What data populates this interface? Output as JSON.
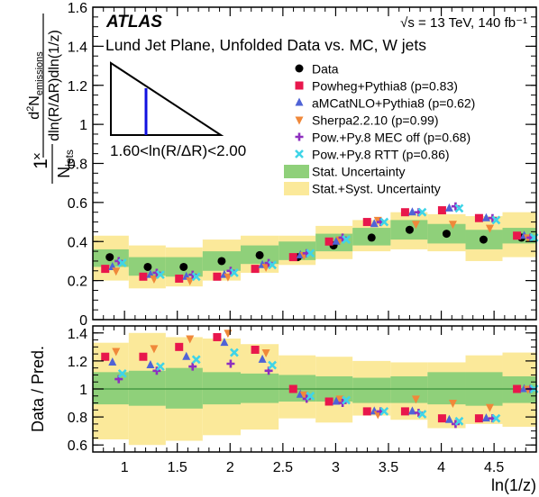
{
  "chart_data": [
    {
      "type": "scatter",
      "experiment": "ATLAS",
      "energy_label": "√s = 13 TeV, 140 fb⁻¹",
      "title": "Lund Jet Plane, Unfolded Data vs. MC, W jets",
      "bin_label": "1.60<ln(R/ΔR)<2.00",
      "xlabel": "ln(1/z)",
      "ylabel": "1/N_jets × d²N_emissions / dln(R/ΔR)dln(1/z)",
      "xlim": [
        0.7,
        4.9
      ],
      "ylim": [
        0,
        1.6
      ],
      "xticks": [
        1,
        1.5,
        2,
        2.5,
        3,
        3.5,
        4,
        4.5
      ],
      "yticks": [
        0,
        0.2,
        0.4,
        0.6,
        0.8,
        1,
        1.2,
        1.4,
        1.6
      ],
      "legend_placement": "top-right",
      "x": [
        0.86,
        1.22,
        1.56,
        1.92,
        2.28,
        2.64,
        2.98,
        3.34,
        3.7,
        4.05,
        4.4,
        4.76
      ],
      "bin_edges": [
        0.7,
        1.04,
        1.39,
        1.74,
        2.1,
        2.46,
        2.81,
        3.16,
        3.52,
        3.87,
        4.23,
        4.58,
        4.93
      ],
      "stat_band": [
        [
          0.27,
          0.36
        ],
        [
          0.225,
          0.32
        ],
        [
          0.22,
          0.32
        ],
        [
          0.25,
          0.35
        ],
        [
          0.285,
          0.38
        ],
        [
          0.305,
          0.4
        ],
        [
          0.35,
          0.44
        ],
        [
          0.38,
          0.47
        ],
        [
          0.41,
          0.51
        ],
        [
          0.39,
          0.49
        ],
        [
          0.36,
          0.46
        ],
        [
          0.39,
          0.47
        ]
      ],
      "syst_band": [
        [
          0.2,
          0.43
        ],
        [
          0.16,
          0.38
        ],
        [
          0.17,
          0.37
        ],
        [
          0.2,
          0.41
        ],
        [
          0.24,
          0.43
        ],
        [
          0.28,
          0.43
        ],
        [
          0.31,
          0.48
        ],
        [
          0.35,
          0.51
        ],
        [
          0.36,
          0.55
        ],
        [
          0.35,
          0.54
        ],
        [
          0.3,
          0.53
        ],
        [
          0.32,
          0.55
        ]
      ],
      "series": [
        {
          "name": "Data",
          "marker": "circle",
          "color": "#000000",
          "values": [
            0.32,
            0.27,
            0.27,
            0.3,
            0.33,
            0.32,
            0.38,
            0.42,
            0.46,
            0.44,
            0.41,
            0.42
          ]
        },
        {
          "name": "Powheg+Pythia8 (p=0.83)",
          "marker": "square",
          "color": "#e8174c",
          "values": [
            0.26,
            0.22,
            0.21,
            0.22,
            0.26,
            0.32,
            0.4,
            0.5,
            0.55,
            0.56,
            0.52,
            0.43
          ]
        },
        {
          "name": "aMCatNLO+Pythia8 (p=0.62)",
          "marker": "triangle-up",
          "color": "#4f63d6",
          "values": [
            0.27,
            0.23,
            0.22,
            0.23,
            0.28,
            0.33,
            0.4,
            0.49,
            0.55,
            0.57,
            0.52,
            0.43
          ]
        },
        {
          "name": "Sherpa2.2.10 (p=0.99)",
          "marker": "triangle-down",
          "color": "#f0883a",
          "values": [
            0.25,
            0.21,
            0.2,
            0.22,
            0.27,
            0.33,
            0.41,
            0.51,
            0.49,
            0.49,
            0.47,
            0.42
          ]
        },
        {
          "name": "Pow.+Py.8 MEC off (p=0.68)",
          "marker": "plus",
          "color": "#8e2fbf",
          "values": [
            0.3,
            0.24,
            0.23,
            0.25,
            0.29,
            0.34,
            0.42,
            0.5,
            0.55,
            0.58,
            0.52,
            0.42
          ]
        },
        {
          "name": "Pow.+Py.8 RTT (p=0.86)",
          "marker": "cross",
          "color": "#3fd4e8",
          "values": [
            0.29,
            0.23,
            0.22,
            0.24,
            0.28,
            0.34,
            0.41,
            0.5,
            0.55,
            0.57,
            0.51,
            0.42
          ]
        }
      ],
      "band_legend": [
        {
          "name": "Stat. Uncertainty",
          "color": "#8fd07a"
        },
        {
          "name": "Stat.+Syst. Uncertainty",
          "color": "#fbe99a"
        }
      ]
    },
    {
      "type": "scatter",
      "xlabel": "ln(1/z)",
      "ylabel": "Data / Pred.",
      "xlim": [
        0.7,
        4.9
      ],
      "ylim": [
        0.55,
        1.45
      ],
      "xticks": [
        1,
        1.5,
        2,
        2.5,
        3,
        3.5,
        4,
        4.5
      ],
      "yticks": [
        0.6,
        0.8,
        1,
        1.2,
        1.4
      ],
      "reference_line": 1,
      "x": [
        0.86,
        1.22,
        1.56,
        1.92,
        2.28,
        2.64,
        2.98,
        3.34,
        3.7,
        4.05,
        4.4,
        4.76
      ],
      "bin_edges": [
        0.7,
        1.04,
        1.39,
        1.74,
        2.1,
        2.46,
        2.81,
        3.16,
        3.52,
        3.87,
        4.23,
        4.58,
        4.93
      ],
      "stat_band": [
        [
          0.89,
          1.12
        ],
        [
          0.88,
          1.13
        ],
        [
          0.86,
          1.15
        ],
        [
          0.89,
          1.12
        ],
        [
          0.9,
          1.11
        ],
        [
          0.91,
          1.1
        ],
        [
          0.91,
          1.09
        ],
        [
          0.9,
          1.08
        ],
        [
          0.9,
          1.09
        ],
        [
          0.89,
          1.12
        ],
        [
          0.88,
          1.12
        ],
        [
          0.9,
          1.09
        ]
      ],
      "syst_band": [
        [
          0.64,
          1.33
        ],
        [
          0.6,
          1.4
        ],
        [
          0.63,
          1.37
        ],
        [
          0.67,
          1.36
        ],
        [
          0.71,
          1.32
        ],
        [
          0.79,
          1.24
        ],
        [
          0.76,
          1.23
        ],
        [
          0.81,
          1.2
        ],
        [
          0.78,
          1.19
        ],
        [
          0.72,
          1.19
        ],
        [
          0.75,
          1.24
        ],
        [
          0.73,
          1.26
        ]
      ],
      "series": [
        {
          "name": "Powheg+Pythia8 (p=0.83)",
          "marker": "square",
          "color": "#e8174c",
          "values": [
            1.23,
            1.23,
            1.3,
            1.37,
            1.28,
            1.0,
            0.91,
            0.84,
            0.84,
            0.79,
            0.79,
            1.0
          ]
        },
        {
          "name": "aMCatNLO+Pythia8 (p=0.62)",
          "marker": "triangle-up",
          "color": "#4f63d6",
          "values": [
            1.19,
            1.17,
            1.23,
            1.33,
            1.21,
            0.96,
            0.91,
            0.84,
            0.84,
            0.78,
            0.79,
            1.0
          ]
        },
        {
          "name": "Sherpa2.2.10 (p=0.99)",
          "marker": "triangle-down",
          "color": "#f0883a",
          "values": [
            1.27,
            1.29,
            1.36,
            1.4,
            1.26,
            0.96,
            0.93,
            0.82,
            0.93,
            0.9,
            0.87,
            1.0
          ]
        },
        {
          "name": "Pow.+Py.8 MEC off (p=0.68)",
          "marker": "plus",
          "color": "#8e2fbf",
          "values": [
            1.07,
            1.13,
            1.16,
            1.18,
            1.13,
            0.93,
            0.9,
            0.84,
            0.83,
            0.75,
            0.79,
            1.0
          ]
        },
        {
          "name": "Pow.+Py.8 RTT (p=0.86)",
          "marker": "cross",
          "color": "#3fd4e8",
          "values": [
            1.11,
            1.16,
            1.21,
            1.26,
            1.17,
            0.95,
            0.92,
            0.84,
            0.82,
            0.77,
            0.79,
            1.0
          ]
        }
      ]
    }
  ]
}
